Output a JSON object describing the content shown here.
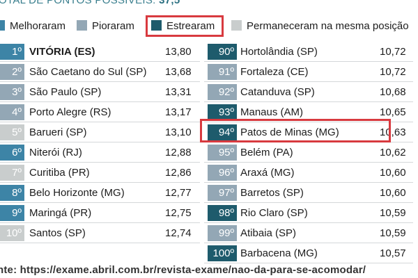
{
  "header": {
    "title": "OTAL DE PONTOS POSSÍVEIS:",
    "total": "37,5"
  },
  "legend": [
    {
      "label": "Melhoraram",
      "color": "#3d84a6"
    },
    {
      "label": "Pioraram",
      "color": "#93a7b5"
    },
    {
      "label": "Estrearam",
      "color": "#1e5b6c"
    },
    {
      "label": "Permaneceram na mesma posição",
      "color": "#c9cdcd"
    }
  ],
  "tables": [
    {
      "rows": [
        {
          "rank": "1º",
          "city": "VITÓRIA (ES)",
          "score": "13,80",
          "color": "#3d84a6"
        },
        {
          "rank": "2º",
          "city": "São Caetano do Sul (SP)",
          "score": "13,68",
          "color": "#93a7b5"
        },
        {
          "rank": "3º",
          "city": "São Paulo (SP)",
          "score": "13,31",
          "color": "#93a7b5"
        },
        {
          "rank": "4º",
          "city": "Porto Alegre (RS)",
          "score": "13,17",
          "color": "#93a7b5"
        },
        {
          "rank": "5º",
          "city": "Barueri (SP)",
          "score": "13,10",
          "color": "#c9cdcd"
        },
        {
          "rank": "6º",
          "city": "Niterói (RJ)",
          "score": "12,88",
          "color": "#3d84a6"
        },
        {
          "rank": "7º",
          "city": "Curitiba (PR)",
          "score": "12,86",
          "color": "#c9cdcd"
        },
        {
          "rank": "8º",
          "city": "Belo Horizonte (MG)",
          "score": "12,77",
          "color": "#3d84a6"
        },
        {
          "rank": "9º",
          "city": "Maringá (PR)",
          "score": "12,75",
          "color": "#3d84a6"
        },
        {
          "rank": "10º",
          "city": "Santos (SP)",
          "score": "12,74",
          "color": "#c9cdcd"
        }
      ]
    },
    {
      "rows": [
        {
          "rank": "90º",
          "city": "Hortolândia (SP)",
          "score": "10,72",
          "color": "#1e5b6c"
        },
        {
          "rank": "91º",
          "city": "Fortaleza (CE)",
          "score": "10,72",
          "color": "#93a7b5"
        },
        {
          "rank": "92º",
          "city": "Catanduva (SP)",
          "score": "10,68",
          "color": "#93a7b5"
        },
        {
          "rank": "93º",
          "city": "Manaus (AM)",
          "score": "10,65",
          "color": "#1e5b6c"
        },
        {
          "rank": "94º",
          "city": "Patos de Minas (MG)",
          "score": "10,63",
          "color": "#1e5b6c"
        },
        {
          "rank": "95º",
          "city": "Belém (PA)",
          "score": "10,62",
          "color": "#93a7b5"
        },
        {
          "rank": "96º",
          "city": "Araxá (MG)",
          "score": "10,60",
          "color": "#93a7b5"
        },
        {
          "rank": "97º",
          "city": "Barretos (SP)",
          "score": "10,60",
          "color": "#93a7b5"
        },
        {
          "rank": "98º",
          "city": "Rio Claro (SP)",
          "score": "10,59",
          "color": "#1e5b6c"
        },
        {
          "rank": "99º",
          "city": "Atibaia (SP)",
          "score": "10,59",
          "color": "#93a7b5"
        },
        {
          "rank": "100º",
          "city": "Barbacena (MG)",
          "score": "10,57",
          "color": "#1e5b6c"
        }
      ]
    }
  ],
  "footer": {
    "source": "nte: https://exame.abril.com.br/revista-exame/nao-da-para-se-acomodar/"
  }
}
